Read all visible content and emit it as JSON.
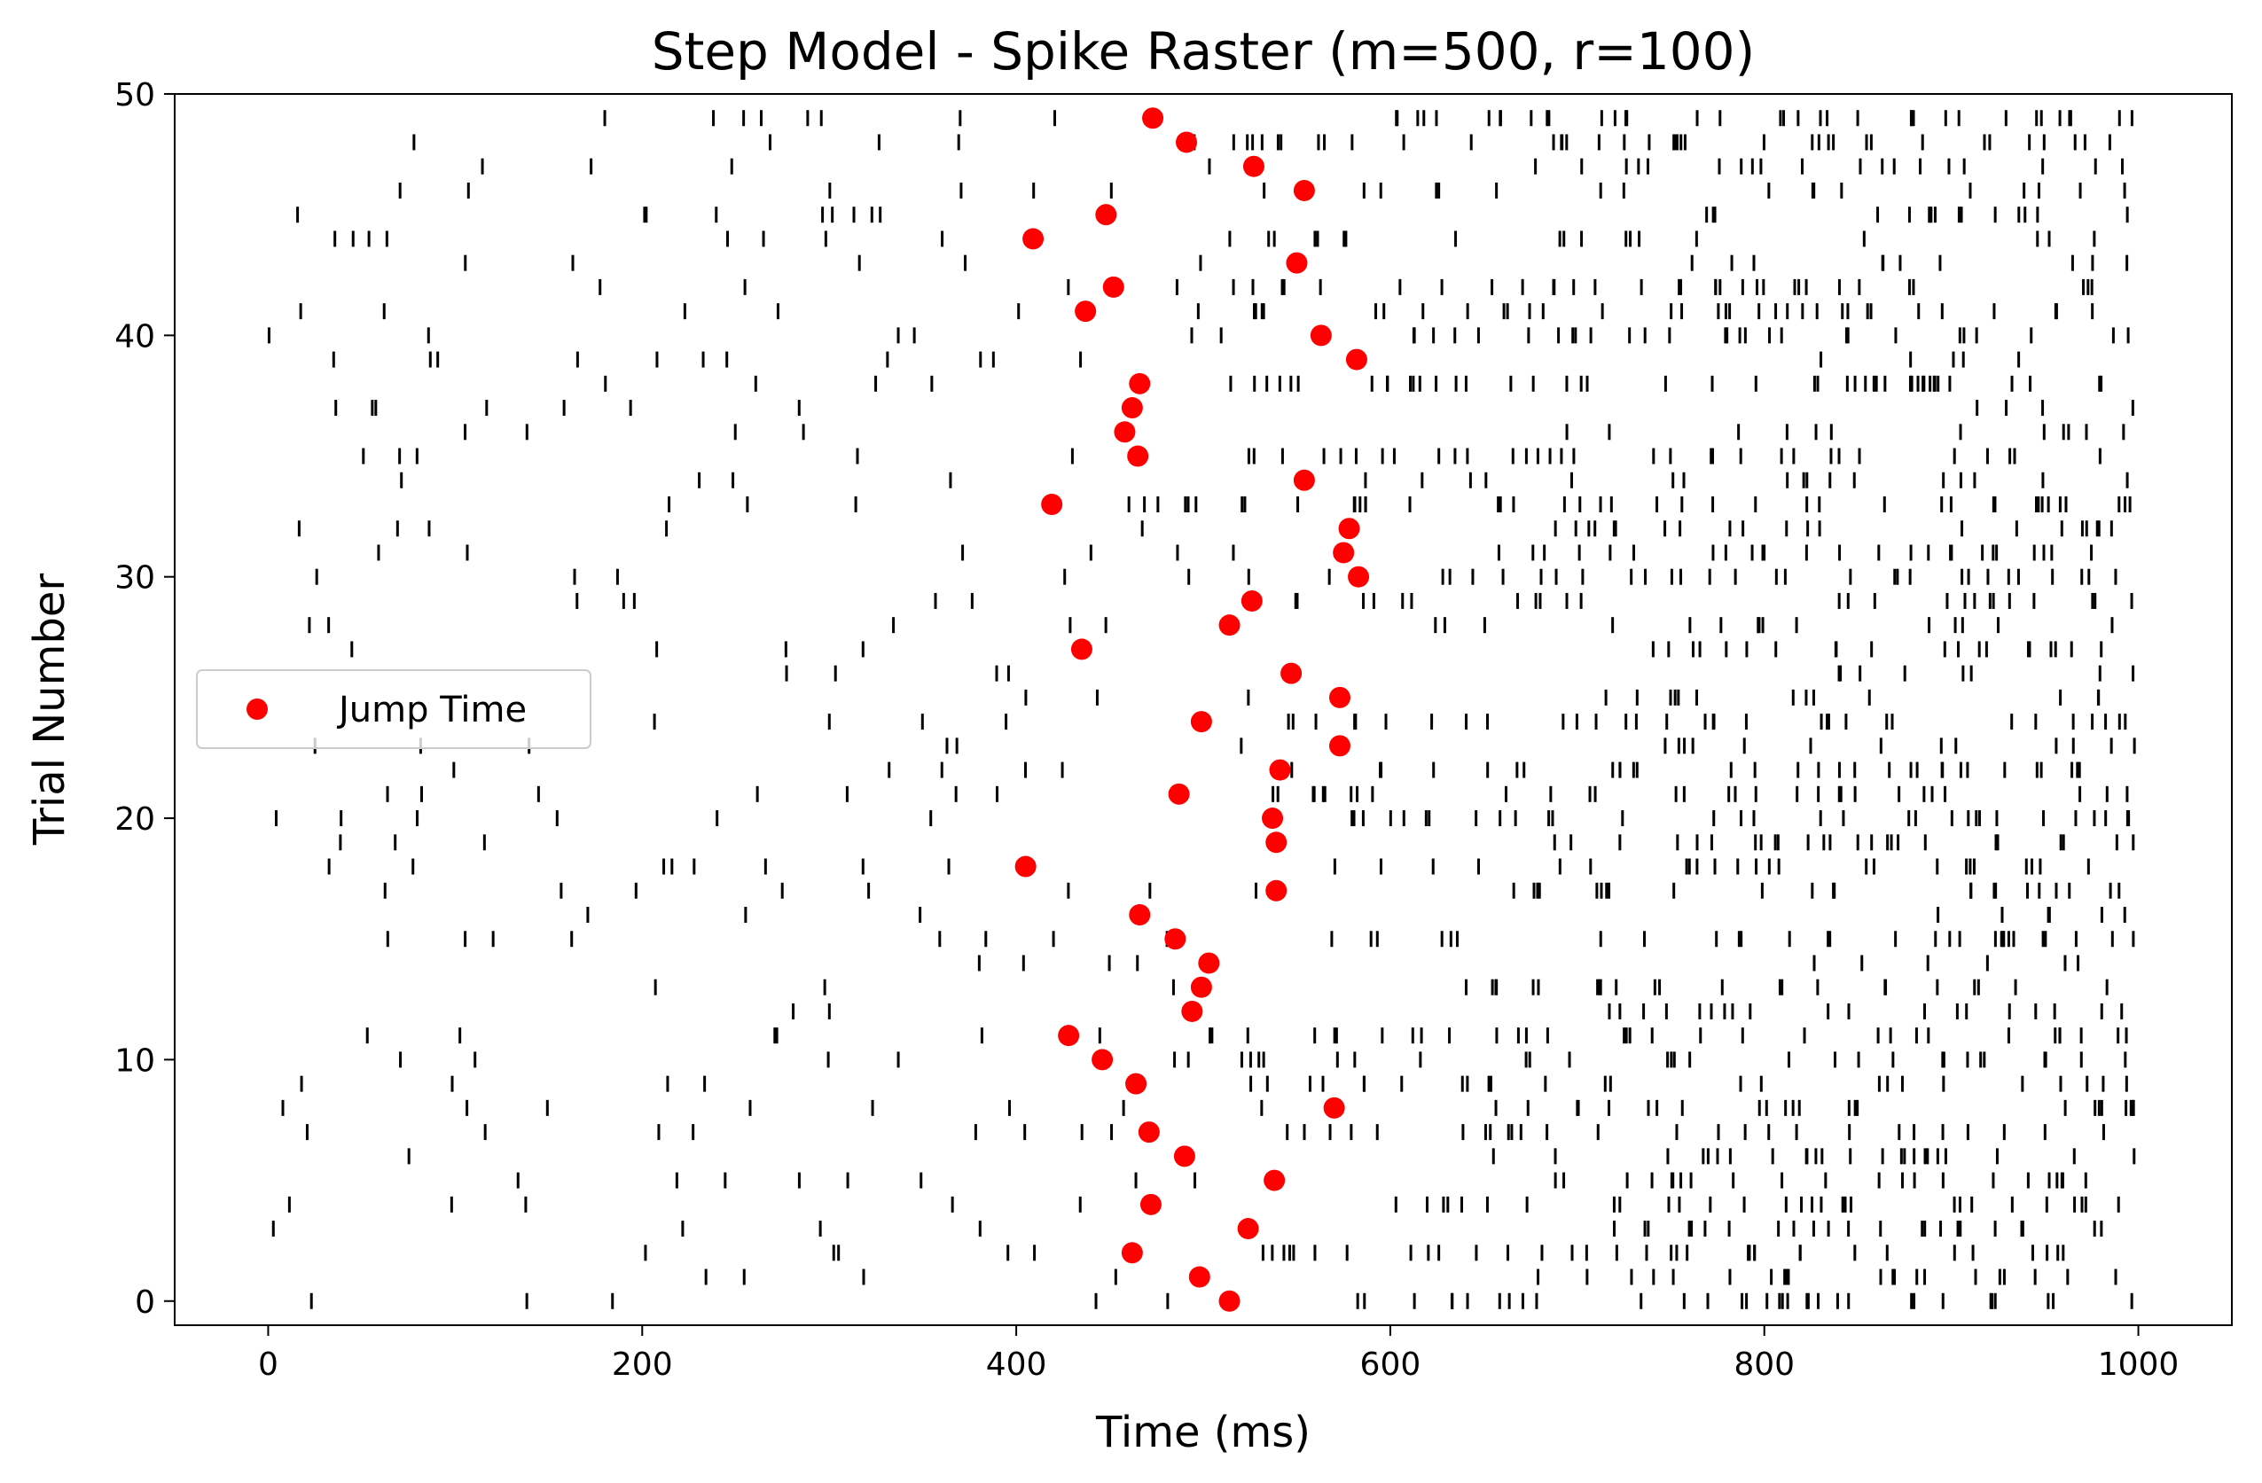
{
  "chart_data": {
    "type": "scatter",
    "title": "Step Model - Spike Raster (m=500, r=100)",
    "xlabel": "Time (ms)",
    "ylabel": "Trial Number",
    "xlim": [
      -50,
      1050
    ],
    "ylim": [
      -1,
      50
    ],
    "xticks": [
      0,
      200,
      400,
      600,
      800,
      1000
    ],
    "yticks": [
      0,
      10,
      20,
      30,
      40,
      50
    ],
    "grid": false,
    "legend": {
      "position": "center-left",
      "entries": [
        "Jump Time"
      ]
    },
    "spike_color": "#000000",
    "series": [
      {
        "name": "Jump Time",
        "color": "#ff0000",
        "marker": "circle",
        "trials": [
          0,
          1,
          2,
          3,
          4,
          5,
          6,
          7,
          8,
          9,
          10,
          11,
          12,
          13,
          14,
          15,
          16,
          17,
          18,
          19,
          20,
          21,
          22,
          23,
          24,
          25,
          26,
          27,
          28,
          29,
          30,
          31,
          32,
          33,
          34,
          35,
          36,
          37,
          38,
          39,
          40,
          41,
          42,
          43,
          44,
          45,
          46,
          47,
          48,
          49
        ],
        "times": [
          514,
          498,
          462,
          524,
          472,
          538,
          490,
          471,
          570,
          464,
          446,
          428,
          494,
          499,
          503,
          485,
          466,
          539,
          405,
          539,
          537,
          487,
          541,
          573,
          499,
          573,
          547,
          435,
          514,
          526,
          583,
          575,
          578,
          419,
          554,
          465,
          458,
          462,
          466,
          582,
          563,
          437,
          452,
          550,
          409,
          448,
          554,
          527,
          491,
          473
        ]
      }
    ]
  }
}
